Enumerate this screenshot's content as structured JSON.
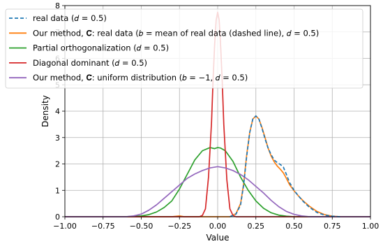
{
  "chart_data": {
    "type": "line",
    "xlabel": "Value",
    "ylabel": "Density",
    "xlim": [
      -1.0,
      1.0
    ],
    "ylim": [
      0,
      8
    ],
    "xticks": [
      -1.0,
      -0.75,
      -0.5,
      -0.25,
      0.0,
      0.25,
      0.5,
      0.75,
      1.0
    ],
    "yticks": [
      0,
      1,
      2,
      3,
      4,
      5,
      6,
      7,
      8
    ],
    "xtick_labels": [
      "−1.00",
      "−0.75",
      "−0.50",
      "−0.25",
      "0.00",
      "0.25",
      "0.50",
      "0.75",
      "1.00"
    ],
    "ytick_labels": [
      "0",
      "1",
      "2",
      "3",
      "4",
      "5",
      "6",
      "7",
      "8"
    ],
    "grid": true,
    "legend_position": "top-left",
    "series": [
      {
        "name": "real data (d = 0.5)",
        "legend_text": "real data (𝑑 = 0.5)",
        "color": "#1f77b4",
        "dashed": true,
        "x": [
          0.08,
          0.12,
          0.15,
          0.17,
          0.19,
          0.21,
          0.23,
          0.25,
          0.27,
          0.29,
          0.31,
          0.33,
          0.35,
          0.37,
          0.39,
          0.41,
          0.43,
          0.45,
          0.47,
          0.5,
          0.53,
          0.56,
          0.6,
          0.65,
          0.7,
          0.75,
          0.8
        ],
        "y": [
          0.0,
          0.1,
          0.45,
          1.2,
          2.3,
          3.2,
          3.7,
          3.82,
          3.7,
          3.35,
          2.95,
          2.6,
          2.35,
          2.15,
          2.05,
          1.98,
          1.88,
          1.6,
          1.3,
          1.0,
          0.78,
          0.58,
          0.36,
          0.16,
          0.06,
          0.02,
          0.0
        ]
      },
      {
        "name": "Our method, C̄: real data (b = mean of real data (dashed line), d = 0.5)",
        "legend_text": "Our method, 𝐂̄: real data (𝑏 = mean of real data (dashed line), 𝑑 = 0.5)",
        "color": "#ff7f0e",
        "dashed": false,
        "x": [
          -1.0,
          -0.3,
          -0.25,
          -0.22,
          0.0,
          0.08,
          0.12,
          0.15,
          0.17,
          0.19,
          0.21,
          0.23,
          0.25,
          0.27,
          0.29,
          0.31,
          0.33,
          0.35,
          0.37,
          0.39,
          0.41,
          0.43,
          0.45,
          0.47,
          0.5,
          0.53,
          0.56,
          0.6,
          0.65,
          0.7,
          0.75,
          0.8,
          1.0
        ],
        "y": [
          0.0,
          0.0,
          0.03,
          0.0,
          0.0,
          0.0,
          0.12,
          0.5,
          1.25,
          2.35,
          3.2,
          3.7,
          3.82,
          3.7,
          3.38,
          3.0,
          2.6,
          2.3,
          2.08,
          1.92,
          1.8,
          1.66,
          1.45,
          1.22,
          0.98,
          0.78,
          0.6,
          0.4,
          0.2,
          0.08,
          0.02,
          0.0,
          0.0
        ]
      },
      {
        "name": "Partial orthogonalization (d = 0.5)",
        "legend_text": "Partial orthogonalization (𝑑 = 0.5)",
        "color": "#2ca02c",
        "dashed": false,
        "x": [
          -1.0,
          -0.6,
          -0.5,
          -0.45,
          -0.4,
          -0.35,
          -0.3,
          -0.25,
          -0.2,
          -0.15,
          -0.1,
          -0.05,
          -0.02,
          0.0,
          0.02,
          0.05,
          0.1,
          0.15,
          0.2,
          0.25,
          0.3,
          0.35,
          0.4,
          0.45,
          0.5,
          0.6,
          1.0
        ],
        "y": [
          0.0,
          0.0,
          0.03,
          0.08,
          0.18,
          0.35,
          0.6,
          1.05,
          1.6,
          2.15,
          2.5,
          2.62,
          2.58,
          2.62,
          2.6,
          2.5,
          2.1,
          1.5,
          1.0,
          0.6,
          0.32,
          0.15,
          0.06,
          0.02,
          0.0,
          0.0,
          0.0
        ]
      },
      {
        "name": "Diagonal dominant (d = 0.5)",
        "legend_text": "Diagonal dominant (𝑑 = 0.5)",
        "color": "#d62728",
        "dashed": false,
        "x": [
          -1.0,
          -0.12,
          -0.1,
          -0.08,
          -0.06,
          -0.04,
          -0.03,
          -0.02,
          -0.01,
          0.0,
          0.01,
          0.02,
          0.03,
          0.04,
          0.06,
          0.08,
          0.1,
          0.12,
          1.0
        ],
        "y": [
          0.0,
          0.0,
          0.05,
          0.3,
          1.5,
          3.6,
          5.2,
          6.5,
          7.45,
          7.75,
          7.45,
          6.4,
          5.1,
          3.5,
          1.4,
          0.3,
          0.05,
          0.0,
          0.0
        ]
      },
      {
        "name": "Our method, C̄: uniform distribution (b = −1, d = 0.5)",
        "legend_text": "Our method, 𝐂̄: uniform distribution (𝑏 = −1, 𝑑 = 0.5)",
        "color": "#9467bd",
        "dashed": false,
        "x": [
          -1.0,
          -0.6,
          -0.55,
          -0.5,
          -0.45,
          -0.4,
          -0.35,
          -0.3,
          -0.25,
          -0.2,
          -0.15,
          -0.1,
          -0.05,
          0.0,
          0.05,
          0.1,
          0.15,
          0.2,
          0.25,
          0.3,
          0.35,
          0.4,
          0.45,
          0.5,
          0.55,
          0.6,
          1.0
        ],
        "y": [
          0.0,
          0.0,
          0.03,
          0.1,
          0.25,
          0.45,
          0.7,
          0.95,
          1.2,
          1.45,
          1.62,
          1.75,
          1.85,
          1.9,
          1.85,
          1.75,
          1.6,
          1.4,
          1.15,
          0.9,
          0.62,
          0.38,
          0.2,
          0.09,
          0.03,
          0.0,
          0.0
        ]
      }
    ]
  }
}
